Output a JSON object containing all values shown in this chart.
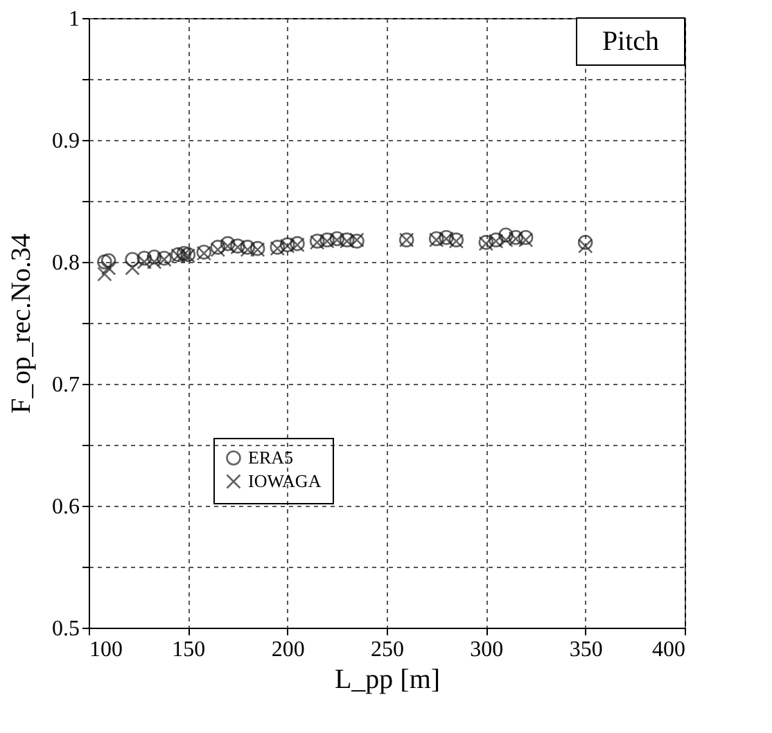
{
  "chart_data": {
    "type": "scatter",
    "xlabel": "L_pp [m]",
    "ylabel": "F_op_rec.No.34",
    "annotations": [
      "Pitch"
    ],
    "x": [
      108,
      110,
      122,
      128,
      133,
      138,
      145,
      148,
      150,
      158,
      165,
      170,
      175,
      180,
      185,
      195,
      200,
      205,
      215,
      220,
      225,
      230,
      235,
      260,
      275,
      280,
      285,
      300,
      305,
      310,
      315,
      320,
      350
    ],
    "series": [
      {
        "name": "ERA5",
        "color": "#222222",
        "marker": "circle",
        "values": [
          0.8,
          0.801,
          0.802,
          0.803,
          0.804,
          0.803,
          0.806,
          0.807,
          0.806,
          0.808,
          0.812,
          0.815,
          0.813,
          0.812,
          0.811,
          0.812,
          0.814,
          0.815,
          0.817,
          0.818,
          0.819,
          0.818,
          0.817,
          0.818,
          0.819,
          0.82,
          0.818,
          0.816,
          0.818,
          0.822,
          0.82,
          0.82,
          0.816
        ]
      },
      {
        "name": "IOWAGA",
        "color": "#222222",
        "marker": "cross",
        "values": [
          0.79,
          0.795,
          0.795,
          0.8,
          0.8,
          0.802,
          0.805,
          0.806,
          0.805,
          0.807,
          0.81,
          0.813,
          0.812,
          0.81,
          0.81,
          0.811,
          0.813,
          0.814,
          0.816,
          0.817,
          0.818,
          0.817,
          0.818,
          0.818,
          0.818,
          0.819,
          0.817,
          0.815,
          0.817,
          0.818,
          0.819,
          0.818,
          0.813
        ]
      }
    ],
    "xlim": [
      100,
      400
    ],
    "xticks": [
      100,
      150,
      200,
      250,
      300,
      350,
      400
    ],
    "ylim": [
      0.5,
      1
    ],
    "yticks": [
      0.5,
      {
        "value": 0.55,
        "label": null
      },
      0.6,
      {
        "value": 0.65,
        "label": null
      },
      0.7,
      {
        "value": 0.75,
        "label": null
      },
      0.8,
      {
        "value": 0.85,
        "label": null
      },
      0.9,
      {
        "value": 0.95,
        "label": null
      },
      1
    ],
    "grid": true,
    "legend": "bottom left"
  }
}
